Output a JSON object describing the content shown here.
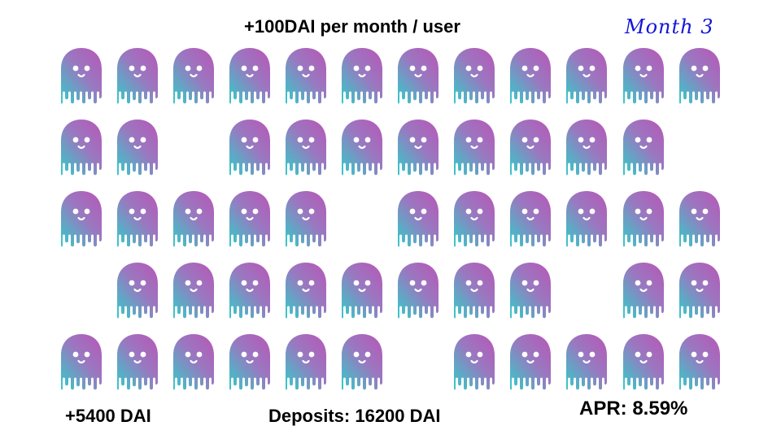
{
  "header": {
    "title": "+100DAI per month / user",
    "month_label": "Month 3"
  },
  "footer": {
    "earned": "+5400 DAI",
    "deposits": "Deposits: 16200 DAI",
    "apr": "APR: 8.59%"
  },
  "colors": {
    "ghost_top": "#b35cb8",
    "ghost_mid": "#9a78c0",
    "ghost_bottom": "#3fc2c8",
    "month_text": "#1515d6"
  },
  "icon": "ghost-icon",
  "grid": {
    "rows": [
      [
        1,
        1,
        1,
        1,
        1,
        1,
        1,
        1,
        1,
        1,
        1,
        1
      ],
      [
        1,
        1,
        0,
        1,
        1,
        1,
        1,
        1,
        1,
        1,
        1,
        0
      ],
      [
        1,
        1,
        1,
        1,
        1,
        0,
        1,
        1,
        1,
        1,
        1,
        1
      ],
      [
        0,
        1,
        1,
        1,
        1,
        1,
        1,
        1,
        1,
        0,
        1,
        1
      ],
      [
        1,
        1,
        1,
        1,
        1,
        1,
        0,
        1,
        1,
        1,
        1,
        1
      ]
    ]
  }
}
